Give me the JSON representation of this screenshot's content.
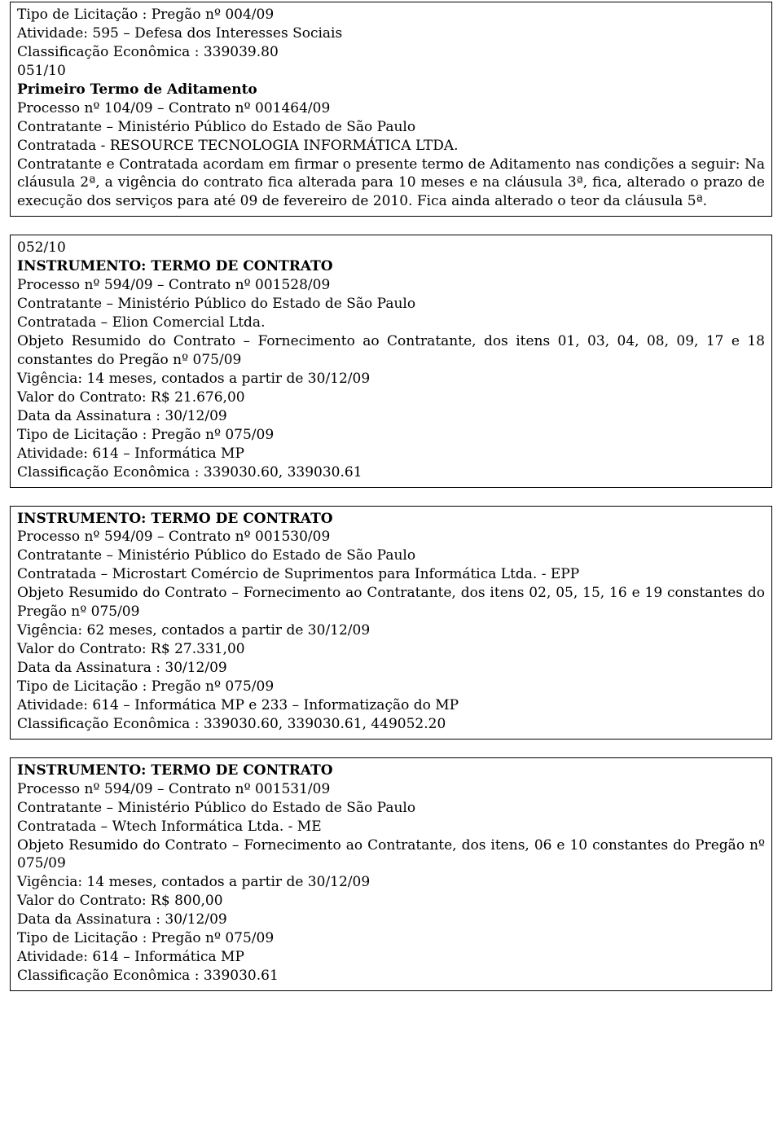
{
  "box1": {
    "l1": "Tipo de Licitação :  Pregão nº 004/09",
    "l2": "Atividade: 595 – Defesa dos Interesses Sociais",
    "l3": "Classificação Econômica : 339039.80",
    "l4": "051/10",
    "l5": "Primeiro Termo de Aditamento",
    "l6": "Processo nº 104/09 –  Contrato  nº 001464/09",
    "l7": "Contratante –  Ministério Público do Estado de São Paulo",
    "l8": "Contratada  -  RESOURCE TECNOLOGIA INFORMÁTICA LTDA.",
    "l9": "Contratante e Contratada acordam em firmar o presente termo de Aditamento nas condições a seguir:  Na cláusula 2ª, a vigência do contrato fica alterada para 10 meses e na cláusula 3ª, fica, alterado o prazo de execução dos serviços para até 09 de fevereiro de 2010. Fica ainda alterado o teor da cláusula 5ª."
  },
  "box2": {
    "l1": "052/10",
    "l2": "INSTRUMENTO:  TERMO DE CONTRATO",
    "l3": "Processo nº 594/09  –   Contrato  nº 001528/09",
    "l4": "Contratante –  Ministério  Público do  Estado de São Paulo",
    "l5": "Contratada  –  Elion Comercial Ltda.",
    "l6": "Objeto Resumido do Contrato –  Fornecimento ao Contratante, dos itens 01, 03, 04, 08, 09, 17 e 18 constantes do Pregão nº 075/09",
    "l7": "Vigência:  14 meses, contados a partir de 30/12/09",
    "l8": "Valor do Contrato: R$ 21.676,00",
    "l9": "Data da Assinatura :  30/12/09",
    "l10": "Tipo de Licitação :  Pregão nº 075/09",
    "l11": "Atividade: 614 – Informática  MP",
    "l12": "Classificação Econômica : 339030.60, 339030.61"
  },
  "box3": {
    "l1": "INSTRUMENTO:  TERMO DE CONTRATO",
    "l2": "Processo nº 594/09  –   Contrato  nº 001530/09",
    "l3": "Contratante –  Ministério  Público do  Estado de São Paulo",
    "l4": "Contratada  –  Microstart Comércio de Suprimentos para Informática Ltda. - EPP",
    "l5": "Objeto Resumido do Contrato –  Fornecimento ao Contratante, dos itens 02, 05, 15, 16 e 19 constantes do Pregão nº 075/09",
    "l6": "Vigência:  62 meses, contados a partir de 30/12/09",
    "l7": "Valor do Contrato: R$ 27.331,00",
    "l8": "Data da Assinatura :  30/12/09",
    "l9": "Tipo de Licitação :  Pregão nº 075/09",
    "l10": "Atividade: 614 – Informática  MP e 233 – Informatização do MP",
    "l11": "Classificação Econômica : 339030.60, 339030.61, 449052.20"
  },
  "box4": {
    "l1": "INSTRUMENTO:  TERMO DE CONTRATO",
    "l2": "Processo nº 594/09  –   Contrato  nº 001531/09",
    "l3": "Contratante –  Ministério  Público do  Estado de São Paulo",
    "l4": "Contratada  –  Wtech Informática Ltda. - ME",
    "l5": "Objeto Resumido do Contrato –  Fornecimento ao Contratante, dos itens,  06 e 10 constantes do Pregão nº 075/09",
    "l6": "Vigência:  14 meses, contados a partir de 30/12/09",
    "l7": "Valor do Contrato: R$ 800,00",
    "l8": "Data da Assinatura :  30/12/09",
    "l9": "Tipo de Licitação :  Pregão nº 075/09",
    "l10": "Atividade: 614 – Informática  MP",
    "l11": "Classificação Econômica :  339030.61"
  }
}
